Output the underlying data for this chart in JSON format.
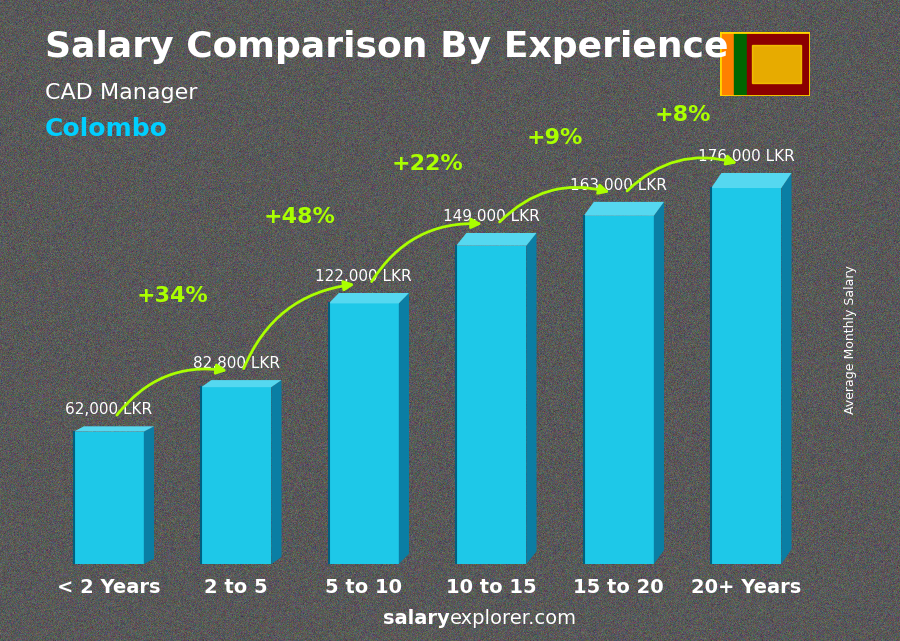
{
  "title": "Salary Comparison By Experience",
  "subtitle1": "CAD Manager",
  "subtitle2": "Colombo",
  "categories": [
    "< 2 Years",
    "2 to 5",
    "5 to 10",
    "10 to 15",
    "15 to 20",
    "20+ Years"
  ],
  "values": [
    62000,
    82800,
    122000,
    149000,
    163000,
    176000
  ],
  "labels": [
    "62,000 LKR",
    "82,800 LKR",
    "122,000 LKR",
    "149,000 LKR",
    "163,000 LKR",
    "176,000 LKR"
  ],
  "pct_labels": [
    "+34%",
    "+48%",
    "+22%",
    "+9%",
    "+8%"
  ],
  "bar_color_face": "#00BFFF",
  "bar_color_dark": "#0080AA",
  "bar_color_top": "#40D0FF",
  "title_color": "#FFFFFF",
  "subtitle1_color": "#FFFFFF",
  "subtitle2_color": "#00CFFF",
  "label_color": "#FFFFFF",
  "pct_color": "#AAFF00",
  "footer_color": "#FFFFFF",
  "footer_bold": "salary",
  "footer_normal": "explorer.com",
  "ylabel": "Average Monthly Salary",
  "background_color": "#444444",
  "ylim_max": 210000,
  "title_fontsize": 26,
  "subtitle1_fontsize": 16,
  "subtitle2_fontsize": 18,
  "label_fontsize": 11,
  "pct_fontsize": 16,
  "cat_fontsize": 14,
  "footer_fontsize": 14
}
